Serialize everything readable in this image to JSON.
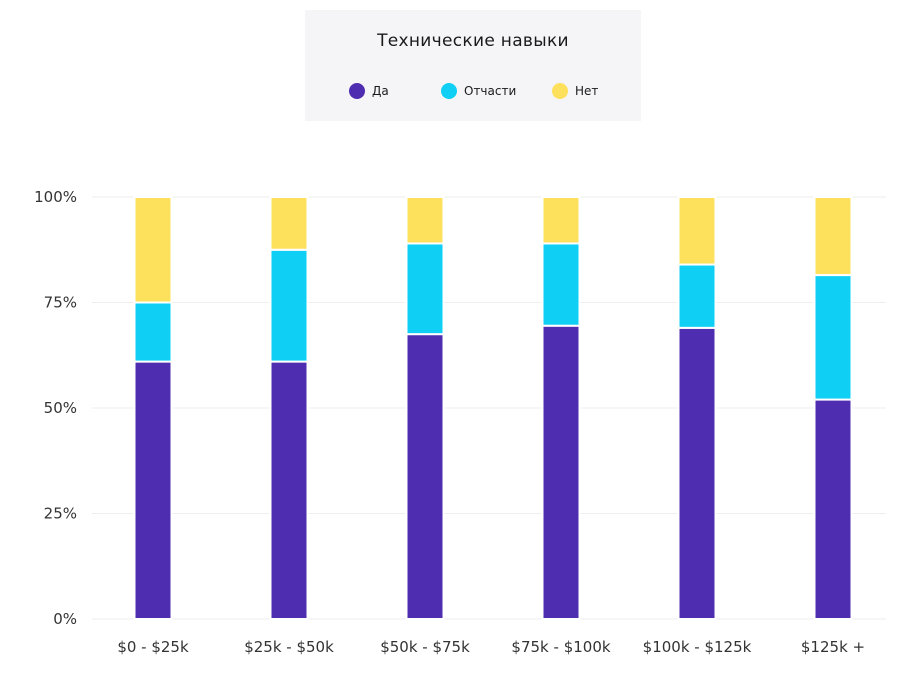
{
  "chart_data": {
    "type": "bar",
    "stacked": true,
    "title": "Технические навыки",
    "legend": {
      "placement": "top-center"
    },
    "categories": [
      "$0 - $25k",
      "$25k - $50k",
      "$50k - $75k",
      "$75k - $100k",
      "$100k - $125k",
      "$125k +"
    ],
    "series": [
      {
        "name": "Да",
        "color": "#4e2db1",
        "values": [
          61,
          61,
          67.5,
          69.5,
          69,
          52
        ]
      },
      {
        "name": "Отчасти",
        "color": "#0fcff5",
        "values": [
          14,
          26.5,
          21.5,
          19.5,
          15,
          29.5
        ]
      },
      {
        "name": "Нет",
        "color": "#fde05c",
        "values": [
          25,
          12.5,
          11,
          11,
          16,
          18.5
        ]
      }
    ],
    "yticks": [
      "0%",
      "25%",
      "50%",
      "75%",
      "100%"
    ],
    "ylim": [
      0,
      100
    ],
    "grid": true
  }
}
